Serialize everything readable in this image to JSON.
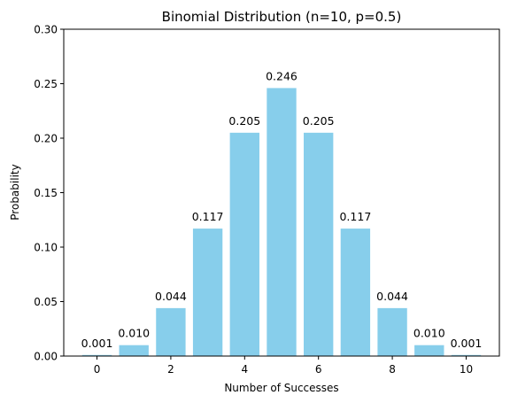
{
  "chart_data": {
    "type": "bar",
    "title": "Binomial Distribution (n=10, p=0.5)",
    "xlabel": "Number of Successes",
    "ylabel": "Probability",
    "categories": [
      0,
      1,
      2,
      3,
      4,
      5,
      6,
      7,
      8,
      9,
      10
    ],
    "values": [
      0.001,
      0.01,
      0.044,
      0.117,
      0.205,
      0.246,
      0.205,
      0.117,
      0.044,
      0.01,
      0.001
    ],
    "value_labels": [
      "0.001",
      "0.010",
      "0.044",
      "0.117",
      "0.205",
      "0.246",
      "0.205",
      "0.117",
      "0.044",
      "0.010",
      "0.001"
    ],
    "xlim": [
      -0.9,
      10.9
    ],
    "ylim": [
      0,
      0.3
    ],
    "xticks": [
      0,
      2,
      4,
      6,
      8,
      10
    ],
    "xtick_labels": [
      "0",
      "2",
      "4",
      "6",
      "8",
      "10"
    ],
    "yticks": [
      0,
      0.05,
      0.1,
      0.15,
      0.2,
      0.25,
      0.3
    ],
    "ytick_labels": [
      "0.00",
      "0.05",
      "0.10",
      "0.15",
      "0.20",
      "0.25",
      "0.30"
    ],
    "bar_color": "#87ceeb",
    "grid": false
  }
}
